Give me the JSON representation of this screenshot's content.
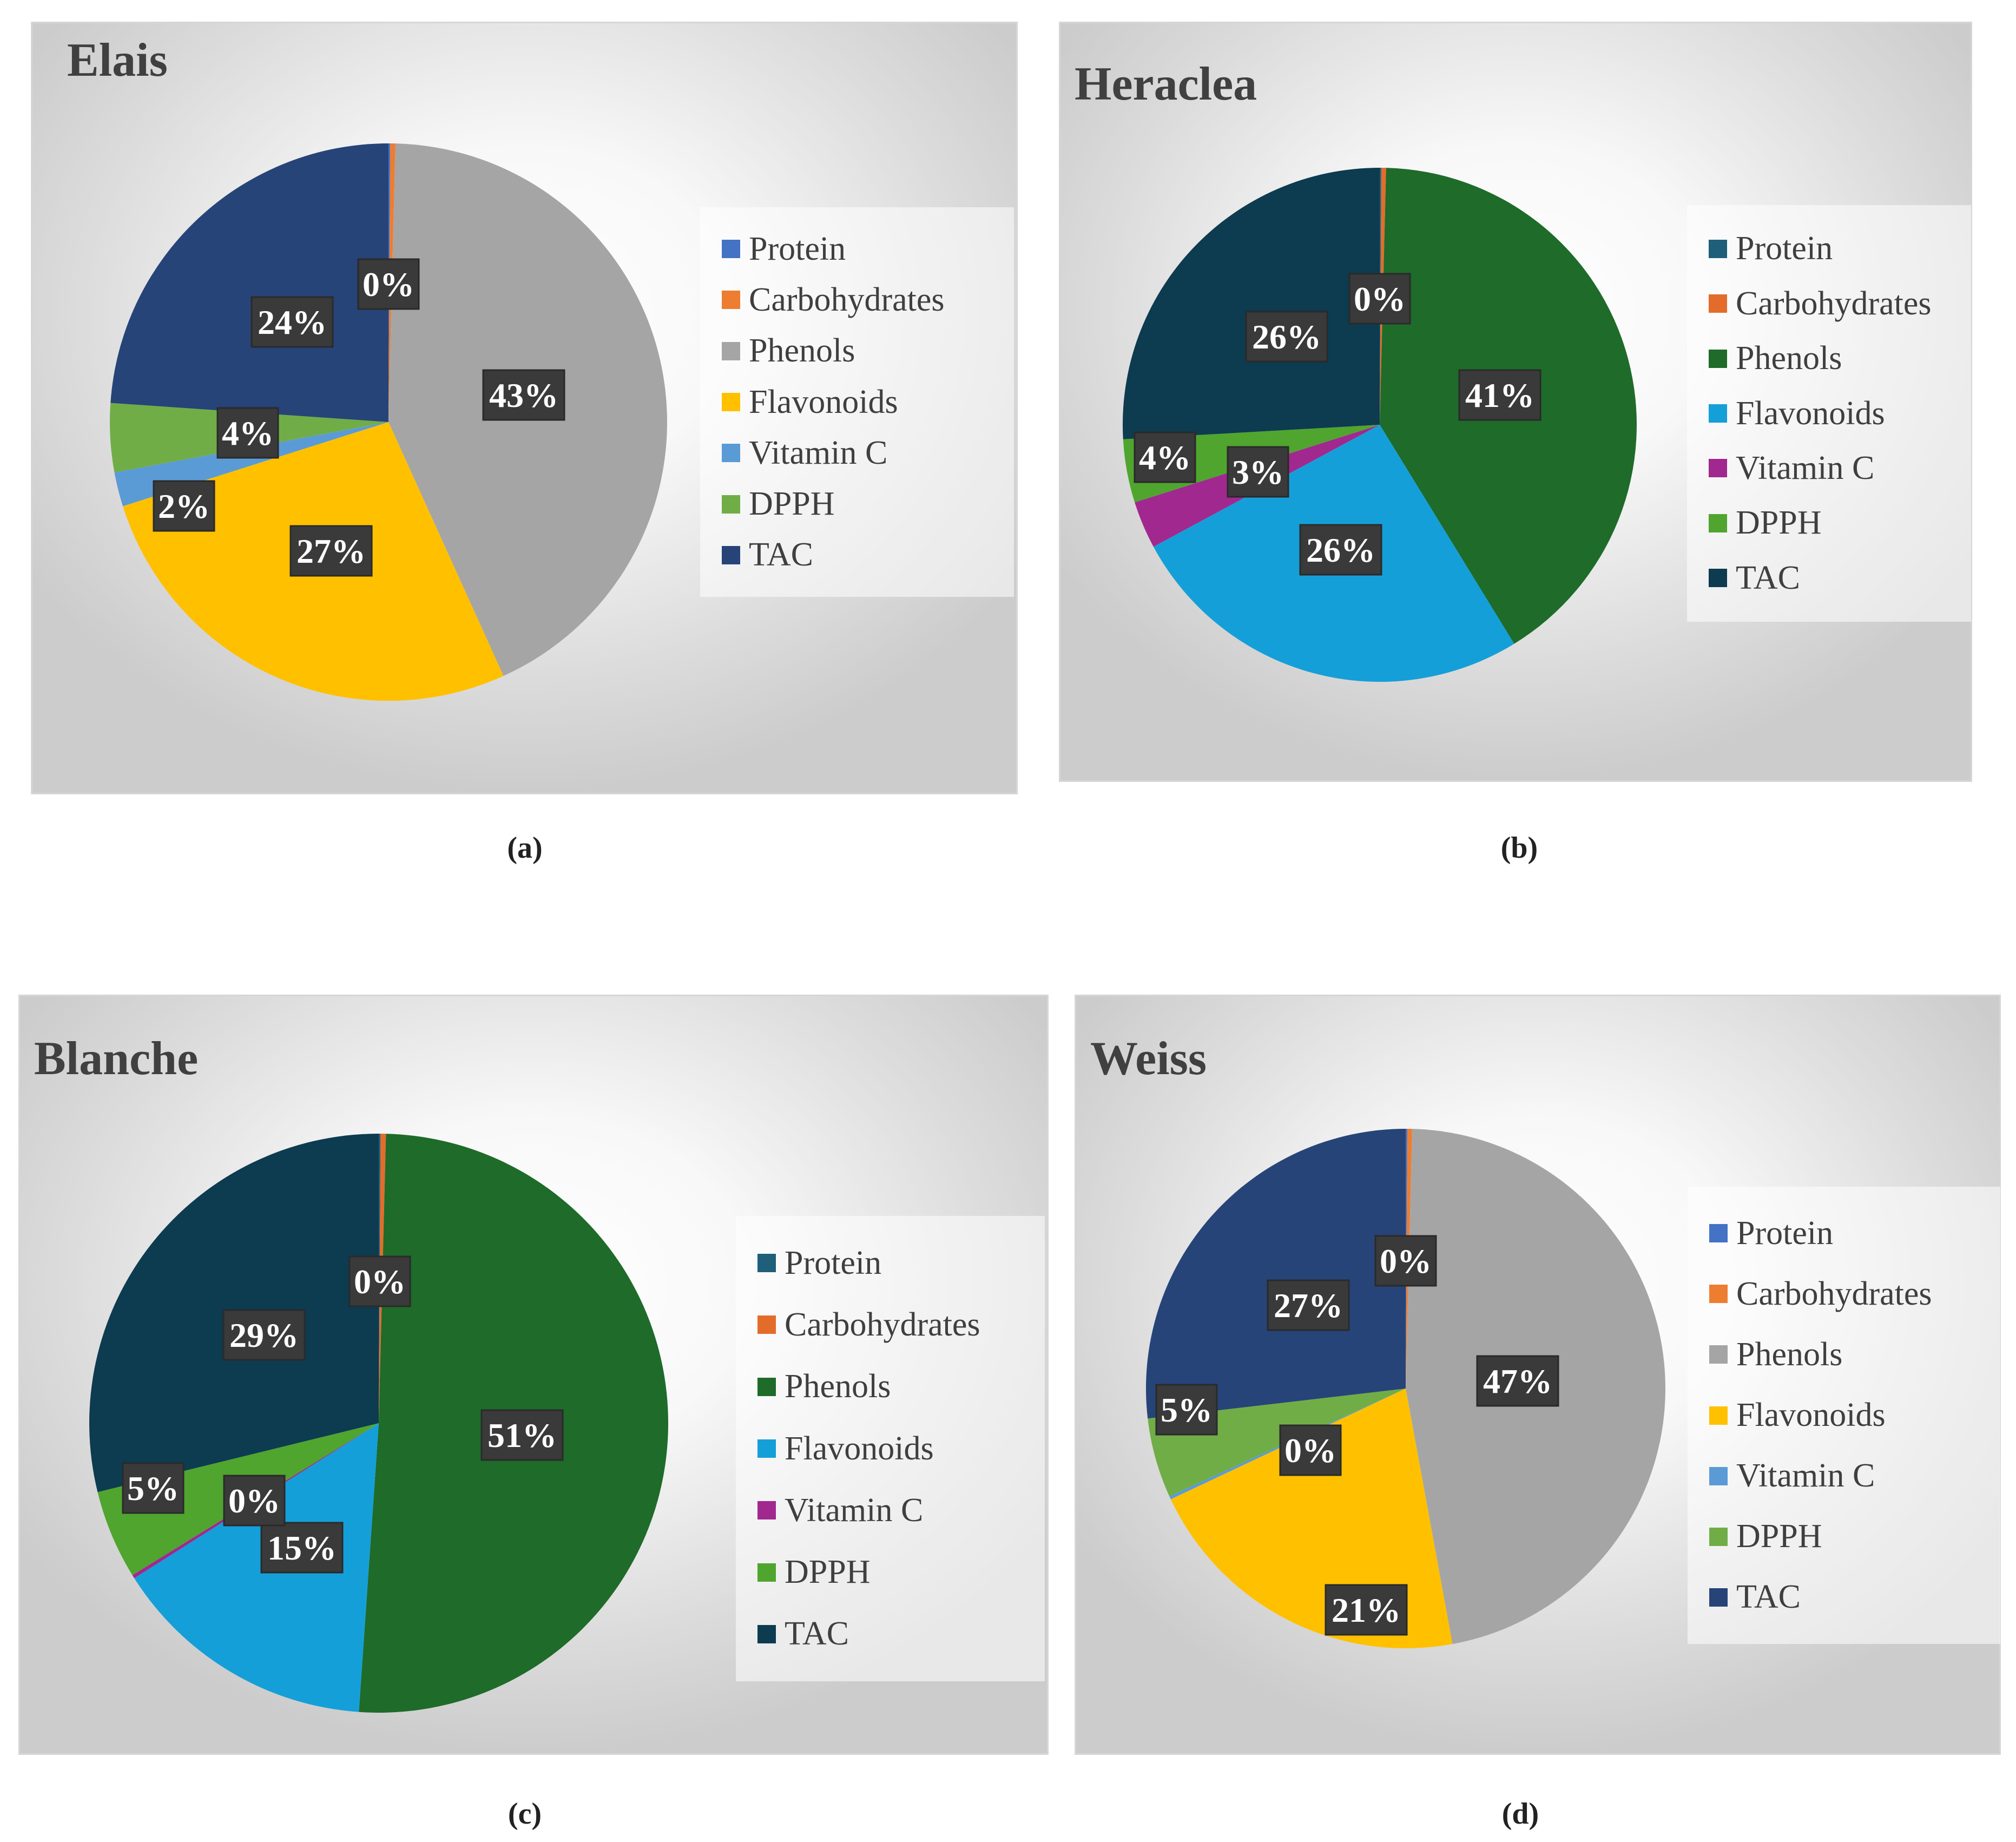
{
  "chart_data": [
    {
      "type": "pie",
      "title": "Elais",
      "caption": "(a)",
      "categories": [
        "Protein",
        "Carbohydrates",
        "Phenols",
        "Flavonoids",
        "Vitamin C",
        "DPPH",
        "TAC"
      ],
      "values": [
        0.1,
        0.3,
        43,
        27,
        2,
        4,
        24
      ],
      "data_labels": [
        "",
        "0%",
        "43%",
        "27%",
        "2%",
        "4%",
        "24%"
      ],
      "colors": [
        "#4472C4",
        "#ED7D31",
        "#A5A5A5",
        "#FFC000",
        "#5B9BD5",
        "#70AD47",
        "#264478"
      ],
      "legend_position": "right"
    },
    {
      "type": "pie",
      "title": "Heraclea",
      "caption": "(b)",
      "categories": [
        "Protein",
        "Carbohydrates",
        "Phenols",
        "Flavonoids",
        "Vitamin C",
        "DPPH",
        "TAC"
      ],
      "values": [
        0.1,
        0.3,
        41,
        26,
        3,
        4,
        26
      ],
      "data_labels": [
        "",
        "0%",
        "41%",
        "26%",
        "3%",
        "4%",
        "26%"
      ],
      "colors": [
        "#1F5F7A",
        "#E36C2A",
        "#1E6B2A",
        "#159FD8",
        "#A1288F",
        "#4FA52E",
        "#0D3B50"
      ],
      "legend_position": "right"
    },
    {
      "type": "pie",
      "title": "Blanche",
      "caption": "(c)",
      "categories": [
        "Protein",
        "Carbohydrates",
        "Phenols",
        "Flavonoids",
        "Vitamin C",
        "DPPH",
        "TAC"
      ],
      "values": [
        0.1,
        0.3,
        51,
        15,
        0.2,
        5,
        29
      ],
      "data_labels": [
        "",
        "0%",
        "51%",
        "15%",
        "0%",
        "5%",
        "29%"
      ],
      "colors": [
        "#1F5F7A",
        "#E36C2A",
        "#1E6B2A",
        "#159FD8",
        "#A1288F",
        "#4FA52E",
        "#0D3B50"
      ],
      "legend_position": "right"
    },
    {
      "type": "pie",
      "title": "Weiss",
      "caption": "(d)",
      "categories": [
        "Protein",
        "Carbohydrates",
        "Phenols",
        "Flavonoids",
        "Vitamin C",
        "DPPH",
        "TAC"
      ],
      "values": [
        0.1,
        0.3,
        47,
        21,
        0.2,
        5,
        27
      ],
      "data_labels": [
        "",
        "0%",
        "47%",
        "21%",
        "0%",
        "5%",
        "27%"
      ],
      "colors": [
        "#4472C4",
        "#ED7D31",
        "#A5A5A5",
        "#FFC000",
        "#5B9BD5",
        "#70AD47",
        "#264478"
      ],
      "legend_position": "right"
    }
  ]
}
